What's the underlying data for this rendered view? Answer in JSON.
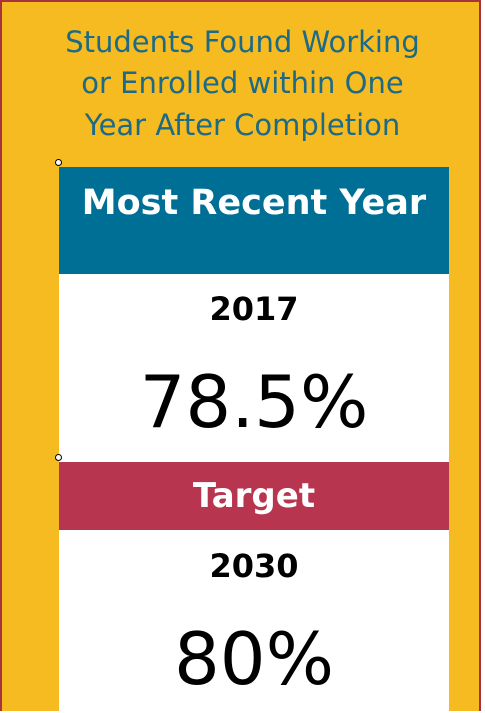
{
  "title_lines": [
    "Students Found Working",
    "or Enrolled within One",
    "Year After Completion"
  ],
  "recent": {
    "header": "Most Recent Year",
    "year": "2017",
    "value": "78.5%"
  },
  "target": {
    "header": "Target",
    "year": "2030",
    "value": "80%"
  }
}
